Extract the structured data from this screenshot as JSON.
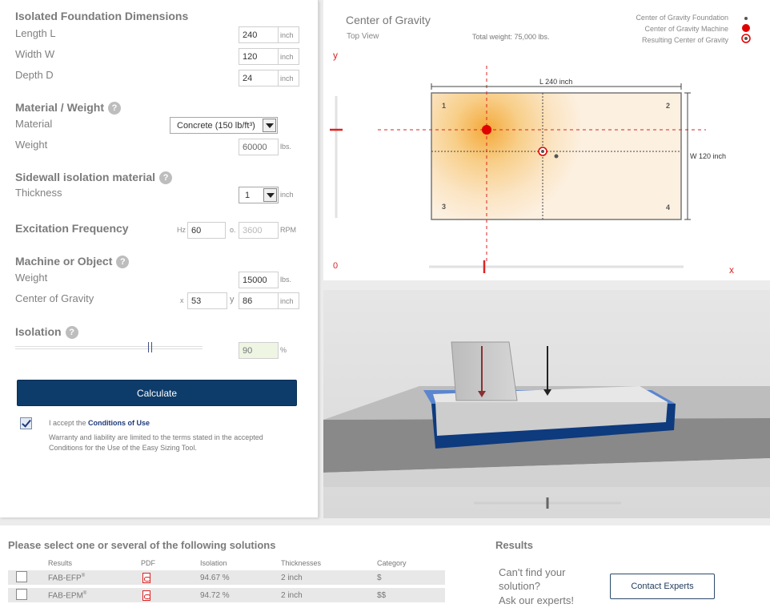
{
  "foundation": {
    "title": "Isolated Foundation Dimensions",
    "length_label": "Length L",
    "length_value": "240",
    "length_unit": "inch",
    "width_label": "Width W",
    "width_value": "120",
    "width_unit": "inch",
    "depth_label": "Depth D",
    "depth_value": "24",
    "depth_unit": "inch"
  },
  "material": {
    "title": "Material / Weight",
    "material_label": "Material",
    "material_selected": "Concrete (150 lb/ft³)",
    "weight_label": "Weight",
    "weight_value": "60000",
    "weight_unit": "lbs."
  },
  "sidewall": {
    "title": "Sidewall isolation material",
    "thickness_label": "Thickness",
    "thickness_selected": "1",
    "thickness_unit": "inch"
  },
  "excitation": {
    "title": "Excitation Frequency",
    "hz_prefix": "Hz",
    "hz_value": "60",
    "or_label": "o.",
    "rpm_value": "3600",
    "rpm_unit": "RPM"
  },
  "machine": {
    "title": "Machine or Object",
    "weight_label": "Weight",
    "weight_value": "15000",
    "weight_unit": "lbs.",
    "cog_label": "Center of Gravity",
    "x_prefix": "x",
    "x_value": "53",
    "y_prefix": "y",
    "y_value": "86",
    "y_unit": "inch"
  },
  "isolation": {
    "title": "Isolation",
    "value": "90",
    "unit": "%",
    "slider_fraction": 0.9
  },
  "calculate_label": "Calculate",
  "accept": {
    "checked": true,
    "prefix": "I accept the ",
    "link": "Conditions of Use",
    "note_line1": "Warranty and liability are limited to the terms stated in the accepted",
    "note_line2": "Conditions for the Use of the Easy Sizing Tool."
  },
  "top_view": {
    "title": "Center of Gravity",
    "subtitle": "Top View",
    "total_weight": "Total weight: 75,000 lbs.",
    "legend": [
      "Center of Gravity Foundation",
      "Center of Gravity Machine",
      "Resulting Center of Gravity"
    ],
    "length_label": "L 240 inch",
    "width_label": "W 120 inch",
    "y_axis": "y",
    "x_axis": "x",
    "origin": "0",
    "corners": [
      "1",
      "2",
      "3",
      "4"
    ]
  },
  "solutions": {
    "title": "Please select one or several of the following solutions",
    "headers": [
      "Results",
      "PDF",
      "Isolation",
      "Thicknesses",
      "Category"
    ],
    "rows": [
      {
        "name": "FAB-EFP",
        "sup": "®",
        "isolation": "94.67 %",
        "thickness": "2 inch",
        "category": "$"
      },
      {
        "name": "FAB-EPM",
        "sup": "®",
        "isolation": "94.72 %",
        "thickness": "2 inch",
        "category": "$$"
      }
    ]
  },
  "results": {
    "title": "Results",
    "cant_find_1": "Can't find your",
    "cant_find_2": "solution?",
    "ask": "Ask our experts!",
    "contact_label": "Contact Experts"
  },
  "colors": {
    "accent": "#0d3c6a",
    "machine_cog": "#e00000",
    "axis_red": "#dd2222"
  }
}
